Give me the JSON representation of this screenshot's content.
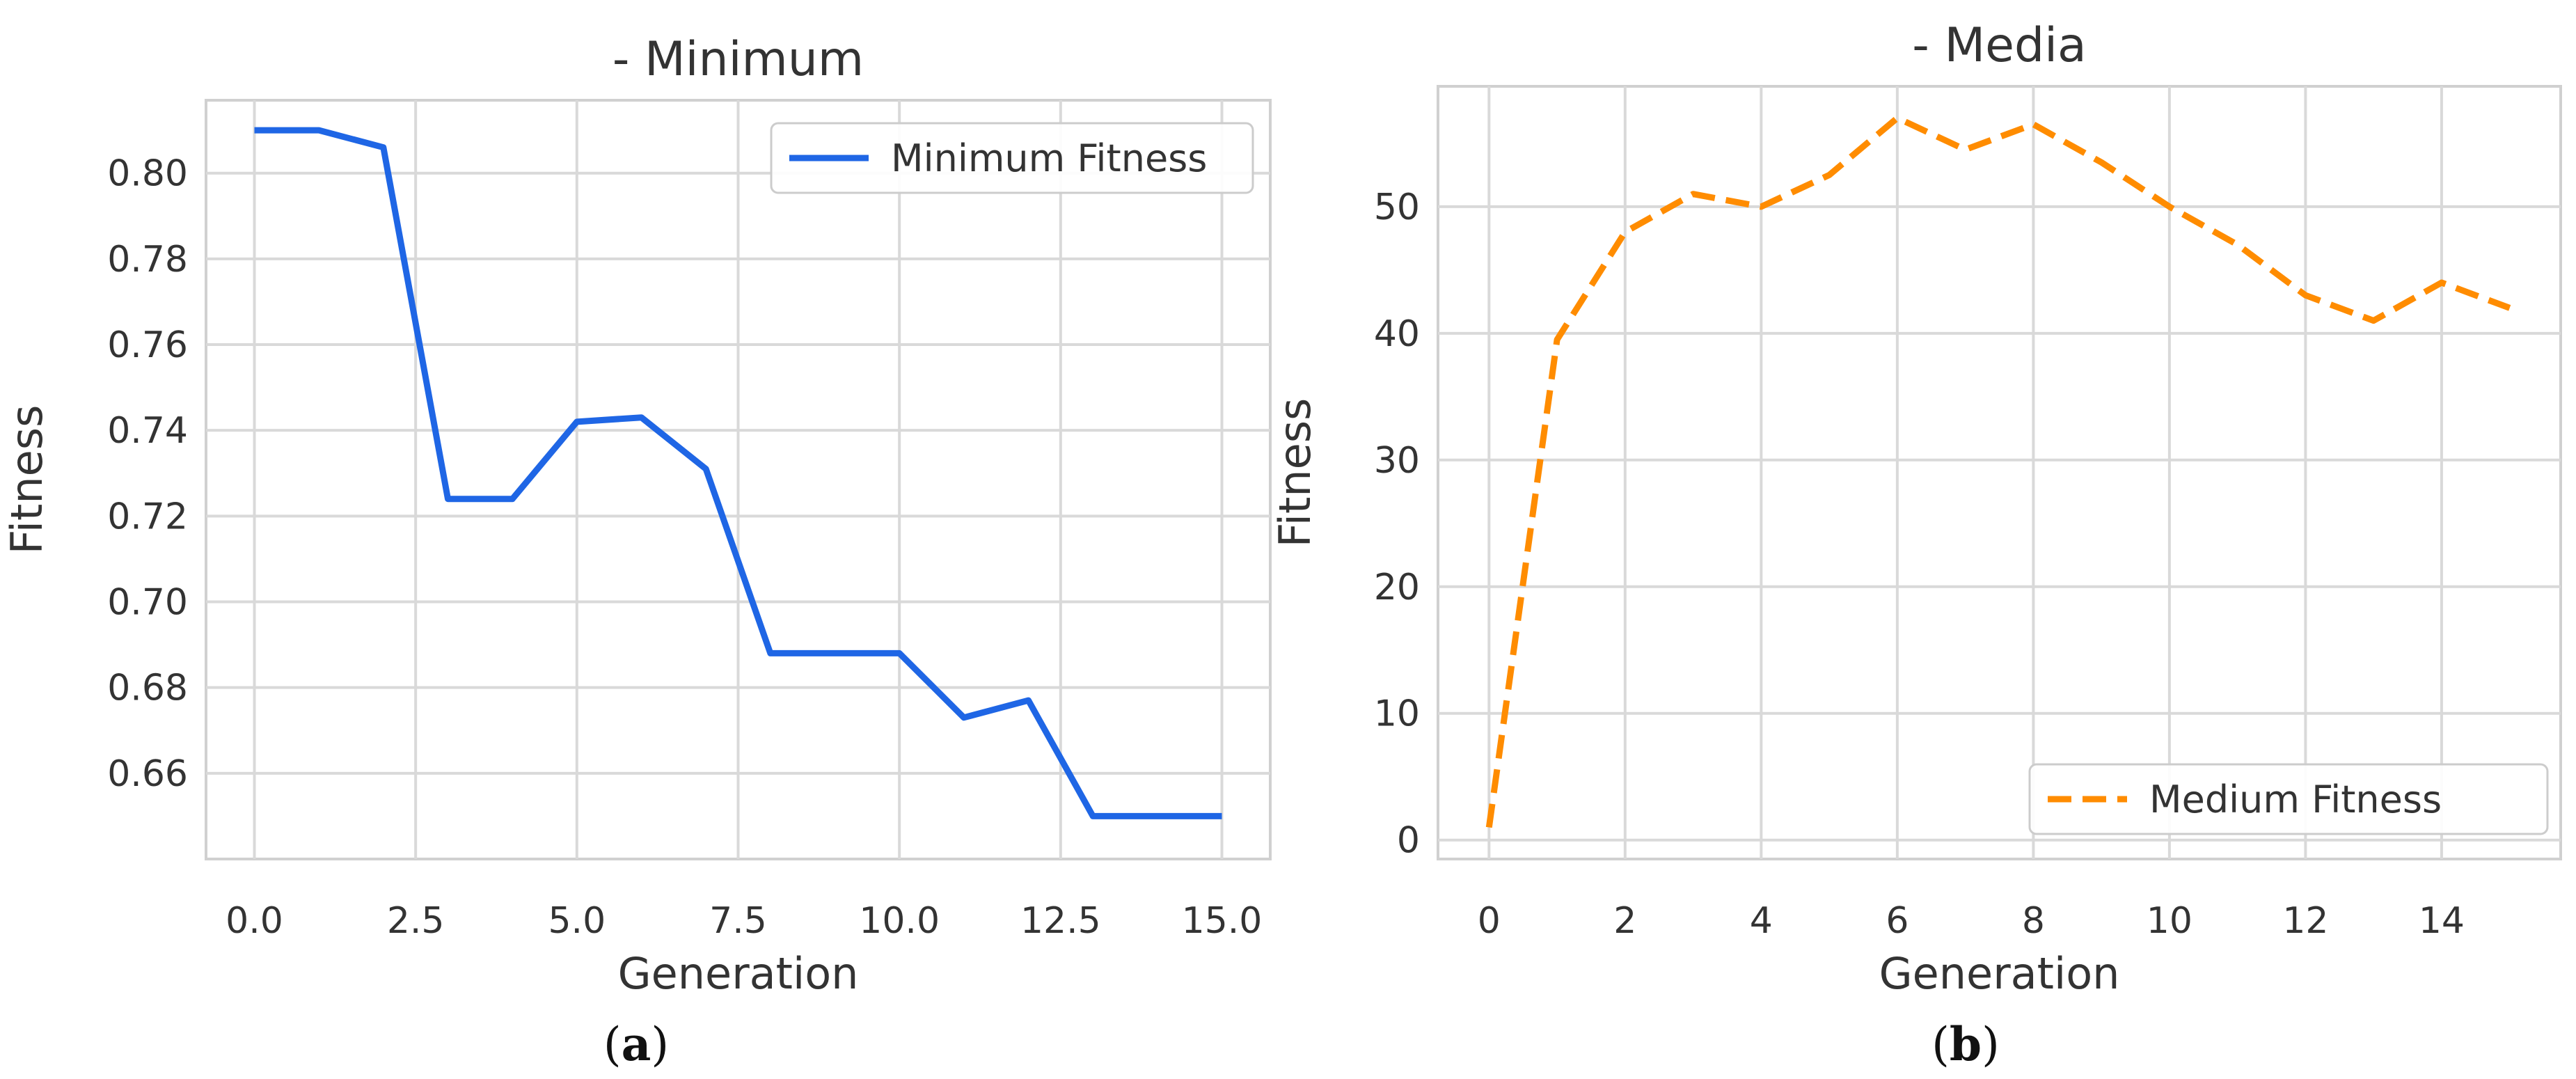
{
  "chart_data": [
    {
      "type": "line",
      "title": "- Minimum",
      "xlabel": "Generation",
      "ylabel": "Fitness",
      "caption_letter": "a",
      "xlim": [
        -0.75,
        15.75
      ],
      "ylim": [
        0.64,
        0.817
      ],
      "xticks": [
        0.0,
        2.5,
        5.0,
        7.5,
        10.0,
        12.5,
        15.0
      ],
      "xtick_labels": [
        "0.0",
        "2.5",
        "5.0",
        "7.5",
        "10.0",
        "12.5",
        "15.0"
      ],
      "yticks": [
        0.66,
        0.68,
        0.7,
        0.72,
        0.74,
        0.76,
        0.78,
        0.8
      ],
      "ytick_labels": [
        "0.66",
        "0.68",
        "0.70",
        "0.72",
        "0.74",
        "0.76",
        "0.78",
        "0.80"
      ],
      "grid": true,
      "legend_position": "top-right",
      "series": [
        {
          "name": "Minimum Fitness",
          "color": "#1f66e5",
          "linestyle": "solid",
          "x": [
            0,
            1,
            2,
            3,
            4,
            5,
            6,
            7,
            8,
            9,
            10,
            11,
            12,
            13,
            14,
            15
          ],
          "y": [
            0.81,
            0.81,
            0.806,
            0.724,
            0.724,
            0.742,
            0.743,
            0.731,
            0.688,
            0.688,
            0.688,
            0.673,
            0.677,
            0.65,
            0.65,
            0.65
          ]
        }
      ]
    },
    {
      "type": "line",
      "title": "- Media",
      "xlabel": "Generation",
      "ylabel": "Fitness",
      "caption_letter": "b",
      "xlim": [
        -0.75,
        15.75
      ],
      "ylim": [
        -1.5,
        59.5
      ],
      "xticks": [
        0,
        2,
        4,
        6,
        8,
        10,
        12,
        14
      ],
      "xtick_labels": [
        "0",
        "2",
        "4",
        "6",
        "8",
        "10",
        "12",
        "14"
      ],
      "yticks": [
        0,
        10,
        20,
        30,
        40,
        50
      ],
      "ytick_labels": [
        "0",
        "10",
        "20",
        "30",
        "40",
        "50"
      ],
      "grid": true,
      "legend_position": "bottom-right",
      "series": [
        {
          "name": "Medium Fitness",
          "color": "#ff8c00",
          "linestyle": "dashed",
          "x": [
            0,
            1,
            2,
            3,
            4,
            5,
            6,
            7,
            8,
            9,
            10,
            11,
            12,
            13,
            14,
            15
          ],
          "y": [
            1,
            39.5,
            48,
            51,
            50,
            52.5,
            57,
            54.5,
            56.5,
            53.5,
            50,
            47,
            43,
            41,
            44,
            42
          ]
        }
      ]
    }
  ]
}
